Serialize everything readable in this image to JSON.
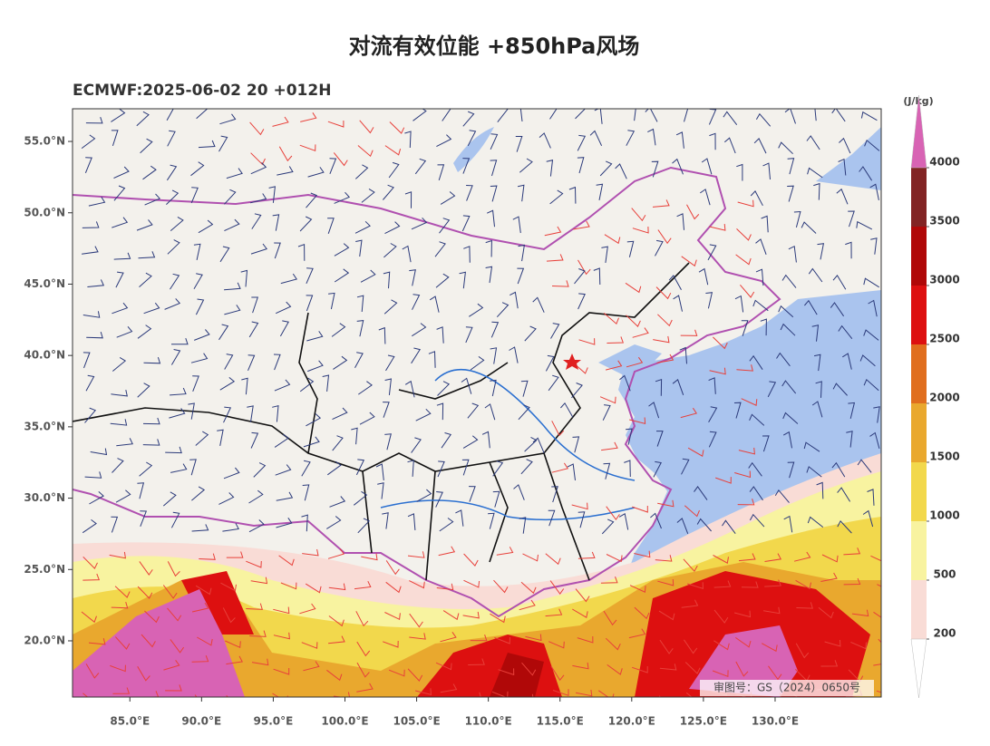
{
  "map": {
    "title": "对流有效位能 +850hPa风场",
    "subtitle": "ECMWF:2025-06-02 20 +012H",
    "lat_lim": [
      16.06,
      57.29
    ],
    "lon_lim": [
      81.0,
      137.4
    ],
    "lat_ticks": [
      {
        "value": 55,
        "label": "55.0°N"
      },
      {
        "value": 50,
        "label": "50.0°N"
      },
      {
        "value": 45,
        "label": "45.0°N"
      },
      {
        "value": 40,
        "label": "40.0°N"
      },
      {
        "value": 35,
        "label": "35.0°N"
      },
      {
        "value": 30,
        "label": "30.0°N"
      },
      {
        "value": 25,
        "label": "25.0°N"
      },
      {
        "value": 20,
        "label": "20.0°N"
      }
    ],
    "lon_ticks": [
      {
        "value": 85,
        "label": "85.0°E"
      },
      {
        "value": 90,
        "label": "90.0°E"
      },
      {
        "value": 95,
        "label": "95.0°E"
      },
      {
        "value": 100,
        "label": "100.0°E"
      },
      {
        "value": 105,
        "label": "105.0°E"
      },
      {
        "value": 110,
        "label": "110.0°E"
      },
      {
        "value": 115,
        "label": "115.0°E"
      },
      {
        "value": 120,
        "label": "120.0°E"
      },
      {
        "value": 125,
        "label": "125.0°E"
      },
      {
        "value": 130,
        "label": "130.0°E"
      }
    ],
    "colorbar": {
      "unit": "(J/kg)",
      "ticks": [
        200,
        500,
        1000,
        1500,
        2000,
        2500,
        3000,
        3500,
        4000
      ],
      "colors": [
        "#f9dcd6",
        "#f8f3a0",
        "#f2d84c",
        "#e9a82e",
        "#e06e1e",
        "#dd1010",
        "#b00808",
        "#822424"
      ],
      "over_color": "#d863b4",
      "under_color": "#ffffff"
    },
    "approval_number": "审图号：GS（2024）0650号"
  }
}
